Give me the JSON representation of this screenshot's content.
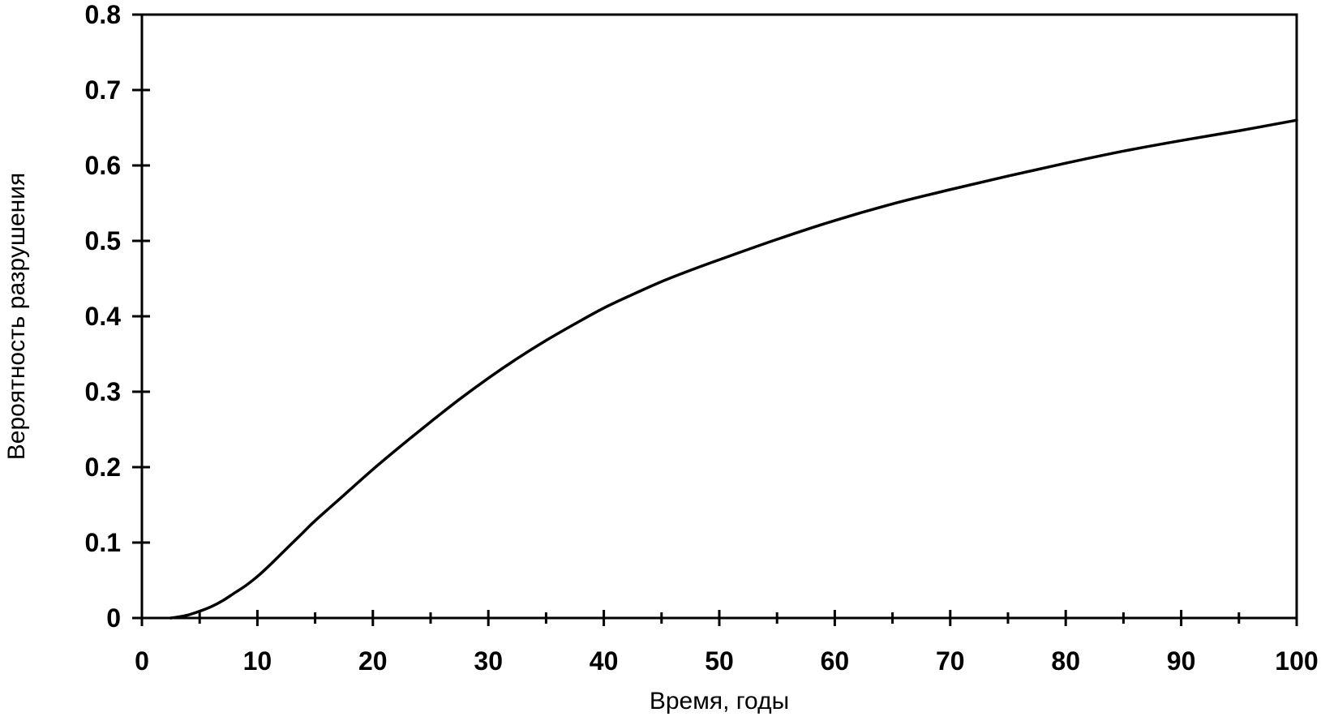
{
  "chart_data": {
    "type": "line",
    "title": "",
    "xlabel": "Время, годы",
    "ylabel": "Вероятность разрушения",
    "xlim": [
      0,
      100
    ],
    "ylim": [
      0,
      0.8
    ],
    "x_ticks": [
      0,
      10,
      20,
      30,
      40,
      50,
      60,
      70,
      80,
      90,
      100
    ],
    "x_tick_labels": [
      "0",
      "10",
      "20",
      "30",
      "40",
      "50",
      "60",
      "70",
      "80",
      "90",
      "100"
    ],
    "x_minor_ticks": [
      5,
      15,
      25,
      35,
      45,
      55,
      65,
      75,
      85,
      95
    ],
    "y_ticks": [
      0,
      0.1,
      0.2,
      0.3,
      0.4,
      0.5,
      0.6,
      0.7,
      0.8
    ],
    "y_tick_labels": [
      "0",
      "0.1",
      "0.2",
      "0.3",
      "0.4",
      "0.5",
      "0.6",
      "0.7",
      "0.8"
    ],
    "grid": false,
    "legend": "none",
    "line_color": "#000000",
    "series": [
      {
        "x": [
          2.5,
          3,
          4,
          5,
          6,
          7,
          8,
          9,
          10,
          11,
          12,
          13,
          14,
          15,
          17.5,
          20,
          22.5,
          25,
          27.5,
          30,
          32.5,
          35,
          37.5,
          40,
          42.5,
          45,
          47.5,
          50,
          55,
          60,
          65,
          70,
          75,
          80,
          85,
          90,
          95,
          100
        ],
        "y": [
          0.0,
          0.001,
          0.004,
          0.009,
          0.015,
          0.023,
          0.033,
          0.043,
          0.055,
          0.069,
          0.084,
          0.099,
          0.114,
          0.129,
          0.163,
          0.197,
          0.229,
          0.26,
          0.29,
          0.318,
          0.344,
          0.368,
          0.39,
          0.411,
          0.429,
          0.446,
          0.461,
          0.475,
          0.502,
          0.527,
          0.549,
          0.568,
          0.586,
          0.603,
          0.619,
          0.633,
          0.646,
          0.66
        ]
      }
    ]
  }
}
